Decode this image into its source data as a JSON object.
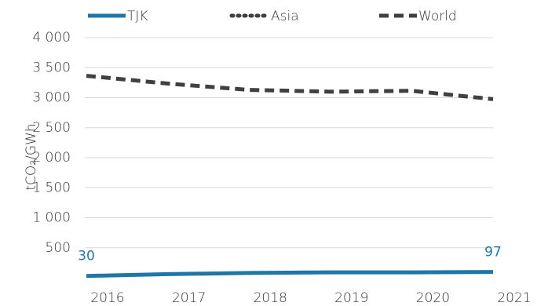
{
  "chart_data": {
    "type": "line",
    "y_label": "tCO₂/GWh",
    "x": [
      2016,
      2017,
      2018,
      2019,
      2020,
      2021
    ],
    "xlim": [
      2016,
      2021
    ],
    "xticks": [
      2016,
      2017,
      2018,
      2019,
      2020,
      2021
    ],
    "ylim": [
      0,
      4000
    ],
    "yticks": [
      500,
      {
        "value": 1000,
        "label": "1 000"
      },
      {
        "value": 1500,
        "label": "1 500"
      },
      {
        "value": 2000,
        "label": "2 000"
      },
      {
        "value": 2500,
        "label": "2 500"
      },
      {
        "value": 3000,
        "label": "3 000"
      },
      {
        "value": 3500,
        "label": "3 500"
      },
      {
        "value": 4000,
        "label": "4 000"
      }
    ],
    "grid": true,
    "series": [
      {
        "name": "TJK",
        "color": "#1f77a8",
        "style": "solid",
        "values": [
          30,
          60,
          80,
          90,
          90,
          97
        ]
      },
      {
        "name": "Asia",
        "color": "#404040",
        "style": "dotted",
        "values": [
          null,
          null,
          null,
          null,
          null,
          null
        ]
      },
      {
        "name": "World",
        "color": "#404040",
        "style": "dashed",
        "values": [
          3365,
          3235,
          3130,
          3100,
          3115,
          2975
        ]
      }
    ]
  }
}
